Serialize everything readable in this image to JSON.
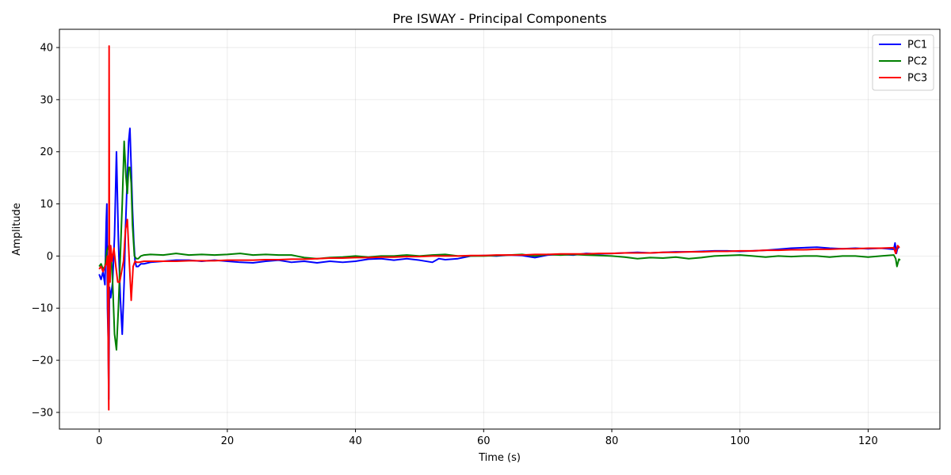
{
  "chart_data": {
    "type": "line",
    "title": "Pre ISWAY - Principal Components",
    "xlabel": "Time (s)",
    "ylabel": "Amplitude",
    "xlim": [
      -6.2,
      131.2
    ],
    "ylim": [
      -33.2,
      43.5
    ],
    "xticks": [
      0,
      20,
      40,
      60,
      80,
      100,
      120
    ],
    "yticks": [
      -30,
      -20,
      -10,
      0,
      10,
      20,
      30,
      40
    ],
    "grid": true,
    "legend": "top-right",
    "series": [
      {
        "name": "PC1",
        "color": "#0000ff",
        "x": [
          0,
          0.3,
          0.6,
          0.9,
          1.1,
          1.2,
          1.3,
          1.4,
          1.5,
          1.6,
          1.8,
          2.1,
          2.4,
          2.7,
          3.0,
          3.3,
          3.6,
          3.9,
          4.1,
          4.3,
          4.6,
          4.8,
          5.0,
          5.2,
          5.4,
          5.6,
          5.8,
          6.1,
          6.5,
          7.0,
          8,
          10,
          12,
          14,
          16,
          18,
          20,
          22,
          24,
          26,
          28,
          30,
          32,
          34,
          36,
          38,
          40,
          42,
          44,
          46,
          48,
          50,
          52,
          53,
          54,
          56,
          58,
          60,
          62,
          64,
          66,
          68,
          70,
          72,
          74,
          76,
          78,
          80,
          82,
          84,
          86,
          88,
          90,
          92,
          94,
          96,
          98,
          100,
          102,
          104,
          106,
          108,
          110,
          112,
          114,
          116,
          118,
          120,
          122,
          124,
          124.2,
          124.4,
          124.6,
          124.8
        ],
        "values": [
          -3.5,
          -4.5,
          -3.0,
          -5.5,
          6.5,
          10,
          -10,
          -15.5,
          -27.5,
          -6,
          -8,
          -5,
          4,
          20,
          3,
          -8,
          -15,
          -5,
          5,
          12,
          22,
          24.5,
          17,
          9,
          3,
          -1,
          -2,
          -2,
          -1.5,
          -1.5,
          -1.2,
          -1.0,
          -0.8,
          -0.8,
          -1.0,
          -0.8,
          -1.0,
          -1.2,
          -1.3,
          -1.0,
          -0.8,
          -1.2,
          -1.0,
          -1.3,
          -1.0,
          -1.2,
          -1.0,
          -0.6,
          -0.5,
          -0.8,
          -0.5,
          -0.8,
          -1.2,
          -0.5,
          -0.7,
          -0.5,
          0,
          0.1,
          0,
          0.2,
          0.1,
          -0.3,
          0.2,
          0.3,
          0.2,
          0.5,
          0.4,
          0.5,
          0.6,
          0.7,
          0.6,
          0.7,
          0.8,
          0.8,
          0.9,
          1.0,
          1.0,
          0.9,
          1.0,
          1.1,
          1.3,
          1.5,
          1.6,
          1.7,
          1.5,
          1.4,
          1.5,
          1.4,
          1.5,
          1.3,
          2.5,
          0.5,
          1.5,
          1.6
        ]
      },
      {
        "name": "PC2",
        "color": "#008000",
        "x": [
          0,
          0.3,
          0.6,
          0.9,
          1.2,
          1.5,
          1.8,
          2.1,
          2.4,
          2.7,
          3.0,
          3.3,
          3.6,
          3.9,
          4.2,
          4.4,
          4.6,
          4.8,
          5.0,
          5.2,
          5.5,
          5.8,
          6.1,
          6.5,
          7.0,
          8,
          10,
          12,
          14,
          16,
          18,
          20,
          22,
          24,
          26,
          28,
          30,
          32,
          34,
          36,
          38,
          40,
          42,
          44,
          46,
          48,
          50,
          52,
          54,
          56,
          58,
          60,
          62,
          64,
          66,
          68,
          70,
          72,
          74,
          76,
          78,
          80,
          82,
          84,
          86,
          88,
          90,
          92,
          94,
          96,
          98,
          100,
          102,
          104,
          106,
          108,
          110,
          112,
          114,
          116,
          118,
          120,
          122,
          124,
          124.3,
          124.5,
          124.8,
          125.0
        ],
        "values": [
          -2.0,
          -1.5,
          -2.5,
          -2.0,
          1.0,
          2.0,
          1.5,
          -5,
          -15,
          -18,
          -10,
          0,
          10,
          22,
          15,
          12,
          17,
          17,
          14,
          6,
          0,
          -0.5,
          -0.5,
          0,
          0.2,
          0.3,
          0.2,
          0.5,
          0.2,
          0.3,
          0.2,
          0.3,
          0.5,
          0.2,
          0.3,
          0.2,
          0.2,
          -0.3,
          -0.5,
          -0.3,
          -0.2,
          0,
          -0.2,
          0,
          0,
          0.2,
          0,
          0.2,
          0.3,
          0,
          0,
          0,
          0.1,
          0.2,
          0.3,
          0,
          0.3,
          0.2,
          0.3,
          0.2,
          0.1,
          0,
          -0.2,
          -0.5,
          -0.3,
          -0.4,
          -0.2,
          -0.5,
          -0.3,
          0,
          0.1,
          0.2,
          0,
          -0.2,
          0,
          -0.1,
          0,
          0,
          -0.2,
          0,
          0,
          -0.2,
          0,
          0.2,
          -0.5,
          -2,
          -0.6,
          -0.8
        ]
      },
      {
        "name": "PC3",
        "color": "#ff0000",
        "x": [
          0,
          0.3,
          0.6,
          0.9,
          1.1,
          1.3,
          1.5,
          1.55,
          1.6,
          1.7,
          1.8,
          2.0,
          2.3,
          2.6,
          2.9,
          3.2,
          3.5,
          3.8,
          4.1,
          4.4,
          4.7,
          5.0,
          5.3,
          5.6,
          5.9,
          6.2,
          6.6,
          7.0,
          8,
          10,
          12,
          14,
          16,
          18,
          20,
          22,
          24,
          26,
          28,
          30,
          32,
          34,
          36,
          38,
          40,
          42,
          44,
          46,
          48,
          50,
          52,
          54,
          56,
          58,
          60,
          62,
          64,
          66,
          68,
          70,
          72,
          74,
          76,
          78,
          80,
          82,
          84,
          86,
          88,
          90,
          92,
          94,
          96,
          98,
          100,
          102,
          104,
          106,
          108,
          110,
          112,
          114,
          116,
          118,
          120,
          122,
          124,
          124.3,
          124.6,
          124.9
        ],
        "values": [
          -2.5,
          -2.0,
          -3.0,
          -2.0,
          -1.5,
          0,
          -29.5,
          40.3,
          1.0,
          -5,
          2.0,
          -1.0,
          1.5,
          -2,
          -5,
          -5,
          -3,
          -1,
          5,
          7,
          -1,
          -8.5,
          -2,
          -1,
          -1.2,
          -1.2,
          -1.1,
          -1.0,
          -1.0,
          -1.0,
          -1.0,
          -0.9,
          -0.9,
          -0.9,
          -0.8,
          -0.8,
          -0.8,
          -0.7,
          -0.7,
          -0.6,
          -0.6,
          -0.5,
          -0.4,
          -0.4,
          -0.3,
          -0.3,
          -0.2,
          -0.2,
          -0.1,
          -0.1,
          0,
          0,
          0,
          0.1,
          0.1,
          0.2,
          0.2,
          0.2,
          0.3,
          0.3,
          0.4,
          0.4,
          0.4,
          0.5,
          0.5,
          0.6,
          0.6,
          0.6,
          0.7,
          0.7,
          0.8,
          0.8,
          0.9,
          0.9,
          1.0,
          1.0,
          1.1,
          1.1,
          1.2,
          1.2,
          1.3,
          1.3,
          1.4,
          1.4,
          1.5,
          1.5,
          1.6,
          0.5,
          2.0,
          1.6
        ]
      }
    ]
  }
}
